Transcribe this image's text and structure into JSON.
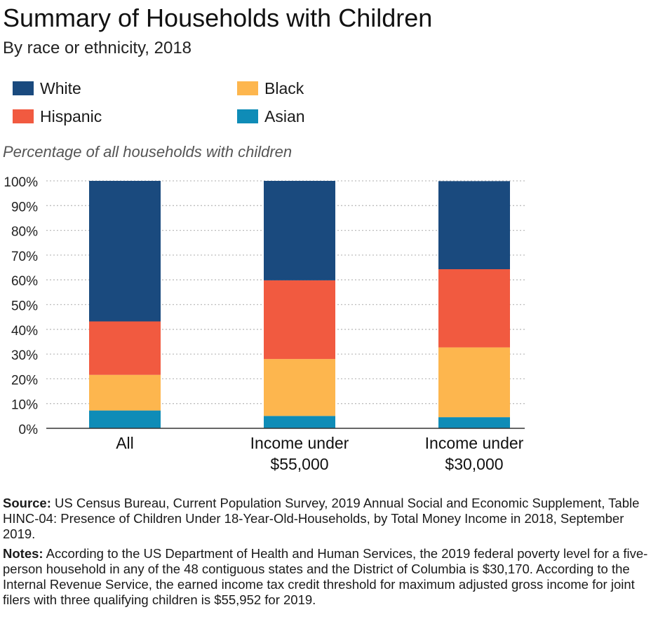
{
  "title": "Summary of Households with Children",
  "subtitle": "By race or ethnicity, 2018",
  "ylabel": "Percentage of all households with children",
  "colors": {
    "white": "#1a4a7e",
    "hispanic": "#f15a40",
    "black": "#fdb64e",
    "asian": "#0f8cb7",
    "grid": "#bdbdbd",
    "axis": "#333333"
  },
  "legend": [
    {
      "label": "White",
      "color": "#1a4a7e"
    },
    {
      "label": "Black",
      "color": "#fdb64e"
    },
    {
      "label": "Hispanic",
      "color": "#f15a40"
    },
    {
      "label": "Asian",
      "color": "#0f8cb7"
    }
  ],
  "chart_data": {
    "type": "bar",
    "stacked": true,
    "categories": [
      [
        "All"
      ],
      [
        "Income under",
        "$55,000"
      ],
      [
        "Income under",
        "$30,000"
      ]
    ],
    "series": [
      {
        "name": "Asian",
        "values": [
          7.2,
          5.0,
          4.5
        ]
      },
      {
        "name": "Black",
        "values": [
          14.4,
          23.0,
          28.2
        ]
      },
      {
        "name": "Hispanic",
        "values": [
          21.6,
          31.8,
          31.6
        ]
      },
      {
        "name": "White",
        "values": [
          56.8,
          40.2,
          35.6
        ]
      }
    ],
    "ylabel": "Percentage of all households with children",
    "ylim": [
      0,
      100
    ],
    "yticks": [
      "0%",
      "10%",
      "20%",
      "30%",
      "40%",
      "50%",
      "60%",
      "70%",
      "80%",
      "90%",
      "100%"
    ],
    "grid": true
  },
  "notes": {
    "source_label": "Source:",
    "source_text": " US Census Bureau, Current Population Survey, 2019 Annual Social and Economic Supplement, Table HINC-04: Presence of Children Under 18-Year-Old-Households, by Total Money Income in 2018, September 2019.",
    "notes_label": "Notes:",
    "notes_text": " According to the US Department of Health and Human Services, the 2019 federal poverty level for a five-person household in any of the 48 contiguous states and the District of Columbia is $30,170. According to the Internal Revenue Service, the earned income tax credit threshold for maximum adjusted gross income for joint filers with three qualifying children is $55,952 for 2019."
  }
}
